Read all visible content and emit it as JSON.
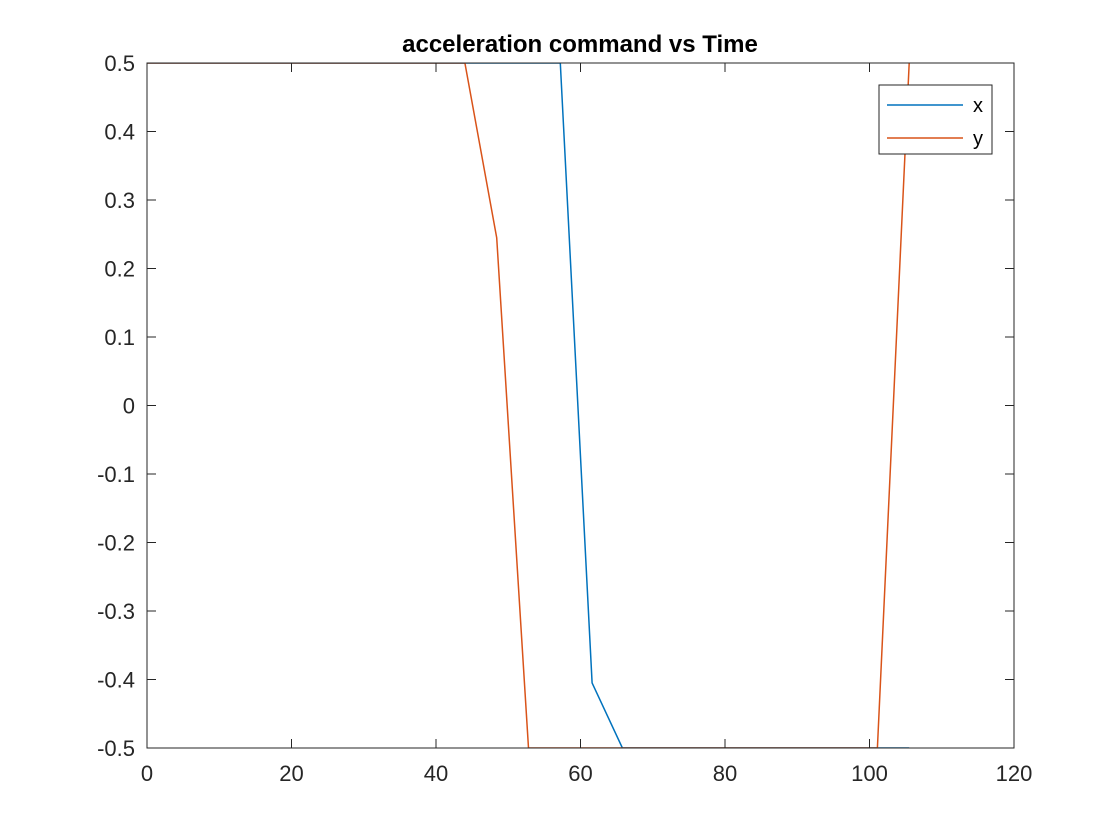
{
  "chart_data": {
    "type": "line",
    "title": "acceleration command vs Time",
    "xlabel": "",
    "ylabel": "",
    "xlim": [
      0,
      120
    ],
    "ylim": [
      -0.5,
      0.5
    ],
    "xticks": [
      0,
      20,
      40,
      60,
      80,
      100,
      120
    ],
    "xtick_labels": [
      "0",
      "20",
      "40",
      "60",
      "80",
      "100",
      "120"
    ],
    "yticks": [
      0.5,
      0.4,
      0.3,
      0.2,
      0.1,
      0,
      -0.1,
      -0.2,
      -0.3,
      -0.4,
      -0.5
    ],
    "ytick_labels": [
      "0.5",
      "0.4",
      "0.3",
      "0.2",
      "0.1",
      "0",
      "-0.1",
      "-0.2",
      "-0.3",
      "-0.4",
      "-0.5"
    ],
    "grid": false,
    "legend_position": "top-right",
    "series": [
      {
        "name": "x",
        "color": "#0072BD",
        "x": [
          0,
          57.2,
          61.6,
          65.8,
          105.5
        ],
        "y": [
          0.5,
          0.5,
          -0.405,
          -0.5,
          -0.5
        ]
      },
      {
        "name": "y",
        "color": "#D95319",
        "x": [
          0,
          44.0,
          48.4,
          52.8,
          101.1,
          105.5
        ],
        "y": [
          0.5,
          0.5,
          0.245,
          -0.5,
          -0.5,
          0.5
        ]
      }
    ]
  }
}
